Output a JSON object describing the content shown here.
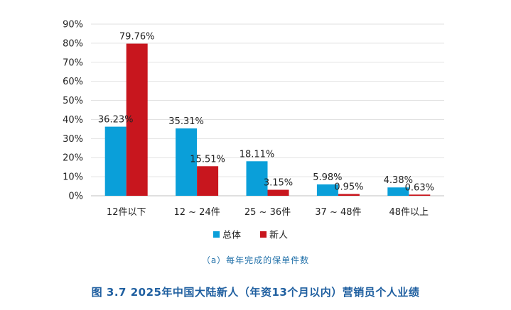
{
  "chart_data": {
    "type": "bar",
    "categories": [
      "12件以下",
      "12 ~ 24件",
      "25 ~ 36件",
      "37 ~ 48件",
      "48件以上"
    ],
    "series": [
      {
        "name": "总体",
        "values": [
          36.23,
          35.31,
          18.11,
          5.98,
          4.38
        ],
        "labels": [
          "36.23%",
          "35.31%",
          "18.11%",
          "5.98%",
          "4.38%"
        ],
        "color": "#0a9fd9"
      },
      {
        "name": "新人",
        "values": [
          79.76,
          15.51,
          3.15,
          0.95,
          0.63
        ],
        "labels": [
          "79.76%",
          "15.51%",
          "3.15%",
          "0.95%",
          "0.63%"
        ],
        "color": "#c8161e"
      }
    ],
    "yticks": [
      "0%",
      "10%",
      "20%",
      "30%",
      "40%",
      "50%",
      "60%",
      "70%",
      "80%",
      "90%"
    ],
    "ylim": [
      0,
      90
    ],
    "grid": true,
    "legend_position": "bottom"
  },
  "subcaption": "（a）每年完成的保单件数",
  "figure_title": "图 3.7  2025年中国大陆新人（年资13个月以内）营销员个人业绩"
}
